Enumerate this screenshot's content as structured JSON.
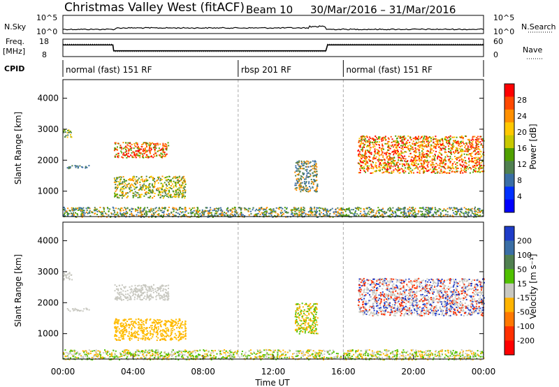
{
  "header": {
    "title": "Christmas Valley West (fitACF)",
    "beam": "Beam 10",
    "date_range": "30/Mar/2016 – 31/Mar/2016"
  },
  "summary": {
    "nsky_label": "N.Sky",
    "nsky_ticks": [
      "10^5",
      "10^0"
    ],
    "nsearch_label": "N.Search",
    "nsearch_ticks": [
      "10^5",
      "10^0"
    ],
    "freq_label": "Freq.",
    "freq_unit": "[MHz]",
    "freq_ticks": [
      "18",
      "8"
    ],
    "nave_label": "Nave",
    "nave_ticks": [
      "60",
      "0"
    ],
    "cpid_label": "CPID",
    "cpid_segments": [
      {
        "label": "normal (fast) 151 RF",
        "start_h": 0,
        "end_h": 10
      },
      {
        "label": "rbsp 201 RF",
        "start_h": 10,
        "end_h": 16
      },
      {
        "label": "normal (fast) 151 RF",
        "start_h": 16,
        "end_h": 24
      }
    ],
    "freq_trace": [
      [
        0,
        15
      ],
      [
        2.85,
        15
      ],
      [
        2.9,
        11
      ],
      [
        15,
        11
      ],
      [
        15.1,
        15
      ],
      [
        24,
        15
      ]
    ],
    "nave_trace": [
      [
        0,
        20
      ],
      [
        2.85,
        20
      ],
      [
        2.9,
        12
      ],
      [
        15,
        12
      ],
      [
        15.1,
        20
      ],
      [
        24,
        20
      ]
    ]
  },
  "chart_data": [
    {
      "type": "heatmap",
      "name": "power-panel",
      "ylabel": "Slant Range [km]",
      "ylim": [
        180,
        4600
      ],
      "xlim": [
        0,
        24
      ],
      "y_ticks": [
        1000,
        2000,
        3000,
        4000
      ],
      "colorbar": {
        "label": "Power [dB]",
        "ticks": [
          "28",
          "24",
          "20",
          "16",
          "12",
          "8",
          "4"
        ],
        "colors": [
          "#ff0000",
          "#ff4800",
          "#ff9000",
          "#ffc800",
          "#c8c800",
          "#50a000",
          "#508050",
          "#3a6ea5",
          "#0030ff",
          "#0000ff"
        ]
      },
      "regions": [
        {
          "t0": 0.0,
          "t1": 0.5,
          "r0": 2750,
          "r1": 3000,
          "colors": [
            "#508050",
            "#50a000",
            "#ffc800"
          ]
        },
        {
          "t0": 0.2,
          "t1": 1.5,
          "r0": 1750,
          "r1": 1850,
          "colors": [
            "#3a6ea5",
            "#508050"
          ]
        },
        {
          "t0": 2.9,
          "t1": 6.0,
          "r0": 2100,
          "r1": 2600,
          "colors": [
            "#ff0000",
            "#ff4800",
            "#ff9000",
            "#50a000"
          ]
        },
        {
          "t0": 2.9,
          "t1": 7.0,
          "r0": 800,
          "r1": 1500,
          "colors": [
            "#ff9000",
            "#ffc800",
            "#50a000",
            "#508050"
          ]
        },
        {
          "t0": 13.2,
          "t1": 14.5,
          "r0": 1000,
          "r1": 2000,
          "colors": [
            "#3a6ea5",
            "#508050",
            "#ff9000"
          ]
        },
        {
          "t0": 16.8,
          "t1": 24.0,
          "r0": 1600,
          "r1": 2800,
          "colors": [
            "#ff0000",
            "#ff4800",
            "#ff9000",
            "#ffc800",
            "#50a000"
          ]
        },
        {
          "t0": 0.0,
          "t1": 24.0,
          "r0": 180,
          "r1": 500,
          "colors": [
            "#3a6ea5",
            "#508050",
            "#50a000",
            "#ff9000"
          ]
        }
      ]
    },
    {
      "type": "heatmap",
      "name": "velocity-panel",
      "ylabel": "Slant Range [km]",
      "xlabel": "Time UT",
      "ylim": [
        180,
        4600
      ],
      "xlim": [
        0,
        24
      ],
      "y_ticks": [
        1000,
        2000,
        3000,
        4000
      ],
      "x_ticks": [
        "00:00",
        "04:00",
        "08:00",
        "12:00",
        "16:00",
        "20:00",
        "00:00"
      ],
      "colorbar": {
        "label": "Velocity [m s⁻¹]",
        "ticks": [
          "200",
          "100",
          "50",
          "15",
          "-15",
          "-50",
          "-100",
          "-200"
        ],
        "colors": [
          "#1e3cc8",
          "#3a6ea5",
          "#508050",
          "#50c000",
          "#c8c8c0",
          "#ffb400",
          "#ff7800",
          "#ff3000",
          "#ff0000"
        ]
      },
      "regions": [
        {
          "t0": 0.0,
          "t1": 0.5,
          "r0": 2750,
          "r1": 3000,
          "colors": [
            "#c8c8c0"
          ]
        },
        {
          "t0": 0.2,
          "t1": 1.5,
          "r0": 1750,
          "r1": 1850,
          "colors": [
            "#c8c8c0"
          ]
        },
        {
          "t0": 2.9,
          "t1": 6.0,
          "r0": 2100,
          "r1": 2600,
          "colors": [
            "#c8c8c0"
          ]
        },
        {
          "t0": 2.9,
          "t1": 7.0,
          "r0": 800,
          "r1": 1500,
          "colors": [
            "#ffb400",
            "#ffc000"
          ]
        },
        {
          "t0": 13.2,
          "t1": 14.5,
          "r0": 1000,
          "r1": 2000,
          "colors": [
            "#ffb400",
            "#50c000"
          ]
        },
        {
          "t0": 16.8,
          "t1": 24.0,
          "r0": 1600,
          "r1": 2800,
          "colors": [
            "#c8c8c0",
            "#c8c8c0",
            "#1e3cc8",
            "#ff3000"
          ]
        },
        {
          "t0": 0.0,
          "t1": 24.0,
          "r0": 180,
          "r1": 500,
          "colors": [
            "#ffb400",
            "#50c000",
            "#c8c8c0"
          ]
        }
      ]
    }
  ]
}
